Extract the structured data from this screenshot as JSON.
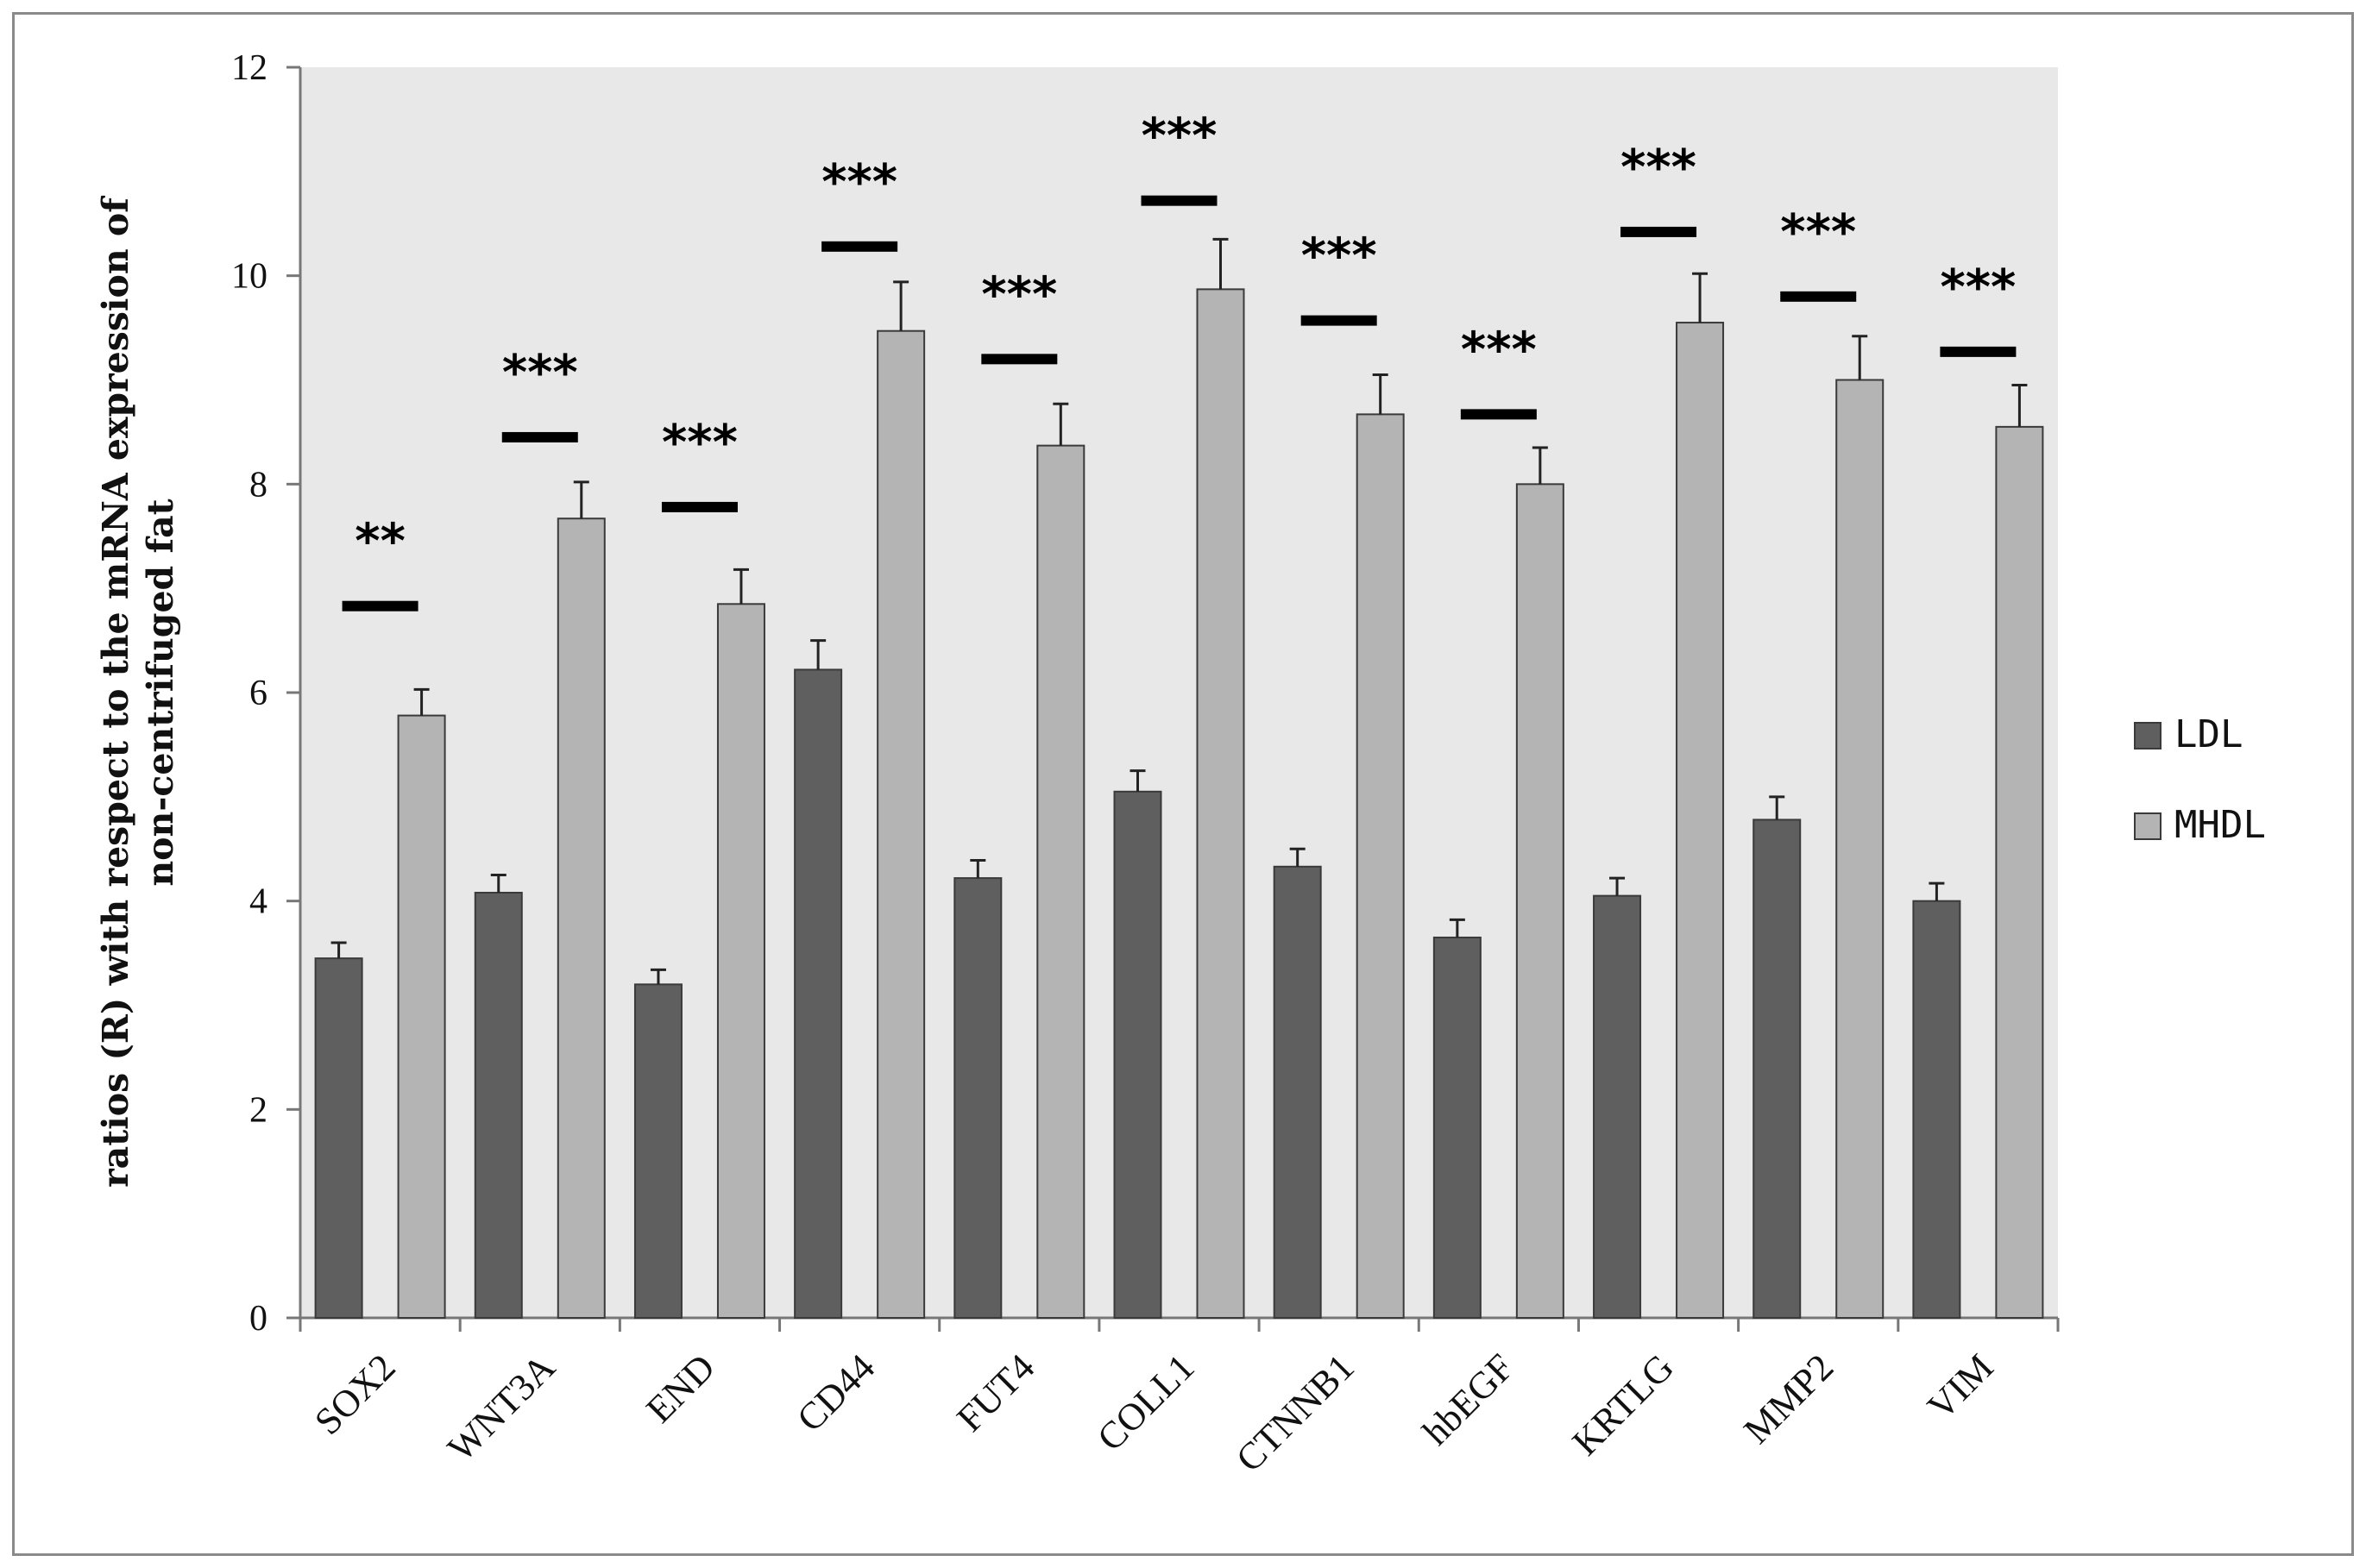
{
  "chart_data": {
    "type": "bar",
    "title": "",
    "xlabel": "",
    "ylabel": "ratios (R) with respect to the mRNA expression of non-centrifuged fat",
    "ylabel_lines": [
      "ratios (R) with respect to the mRNA expression of",
      "non-centrifuged fat"
    ],
    "ylim": [
      0,
      12
    ],
    "yticks": [
      0,
      2,
      4,
      6,
      8,
      10,
      12
    ],
    "grid": false,
    "legend_position": "right",
    "categories": [
      "SOX2",
      "WNT3A",
      "END",
      "CD44",
      "FUT4",
      "COLL1",
      "CTNNB1",
      "hbEGF",
      "KRTLG",
      "MMP2",
      "VIM"
    ],
    "series": [
      {
        "name": "LDL",
        "color": "#5f5f5f",
        "values": [
          3.45,
          4.08,
          3.2,
          6.22,
          4.22,
          5.05,
          4.33,
          3.65,
          4.05,
          4.78,
          4.0
        ],
        "errors": [
          0.15,
          0.17,
          0.14,
          0.28,
          0.17,
          0.2,
          0.17,
          0.17,
          0.17,
          0.22,
          0.17
        ]
      },
      {
        "name": "MHDL",
        "color": "#b4b4b4",
        "values": [
          5.78,
          7.67,
          6.85,
          9.47,
          8.37,
          9.87,
          8.67,
          8.0,
          9.55,
          9.0,
          8.55
        ],
        "errors": [
          0.25,
          0.35,
          0.33,
          0.47,
          0.4,
          0.48,
          0.38,
          0.35,
          0.47,
          0.42,
          0.4
        ]
      }
    ],
    "significance": [
      {
        "category": "SOX2",
        "label": "**",
        "line_value": 6.83
      },
      {
        "category": "WNT3A",
        "label": "***",
        "line_value": 8.45
      },
      {
        "category": "END",
        "label": "***",
        "line_value": 7.78
      },
      {
        "category": "CD44",
        "label": "***",
        "line_value": 10.28
      },
      {
        "category": "FUT4",
        "label": "***",
        "line_value": 9.2
      },
      {
        "category": "COLL1",
        "label": "***",
        "line_value": 10.72
      },
      {
        "category": "CTNNB1",
        "label": "***",
        "line_value": 9.57
      },
      {
        "category": "hbEGF",
        "label": "***",
        "line_value": 8.67
      },
      {
        "category": "KRTLG",
        "label": "***",
        "line_value": 10.42
      },
      {
        "category": "MMP2",
        "label": "***",
        "line_value": 9.8
      },
      {
        "category": "VIM",
        "label": "***",
        "line_value": 9.27
      }
    ],
    "plot_background": "#e8e8e8"
  }
}
